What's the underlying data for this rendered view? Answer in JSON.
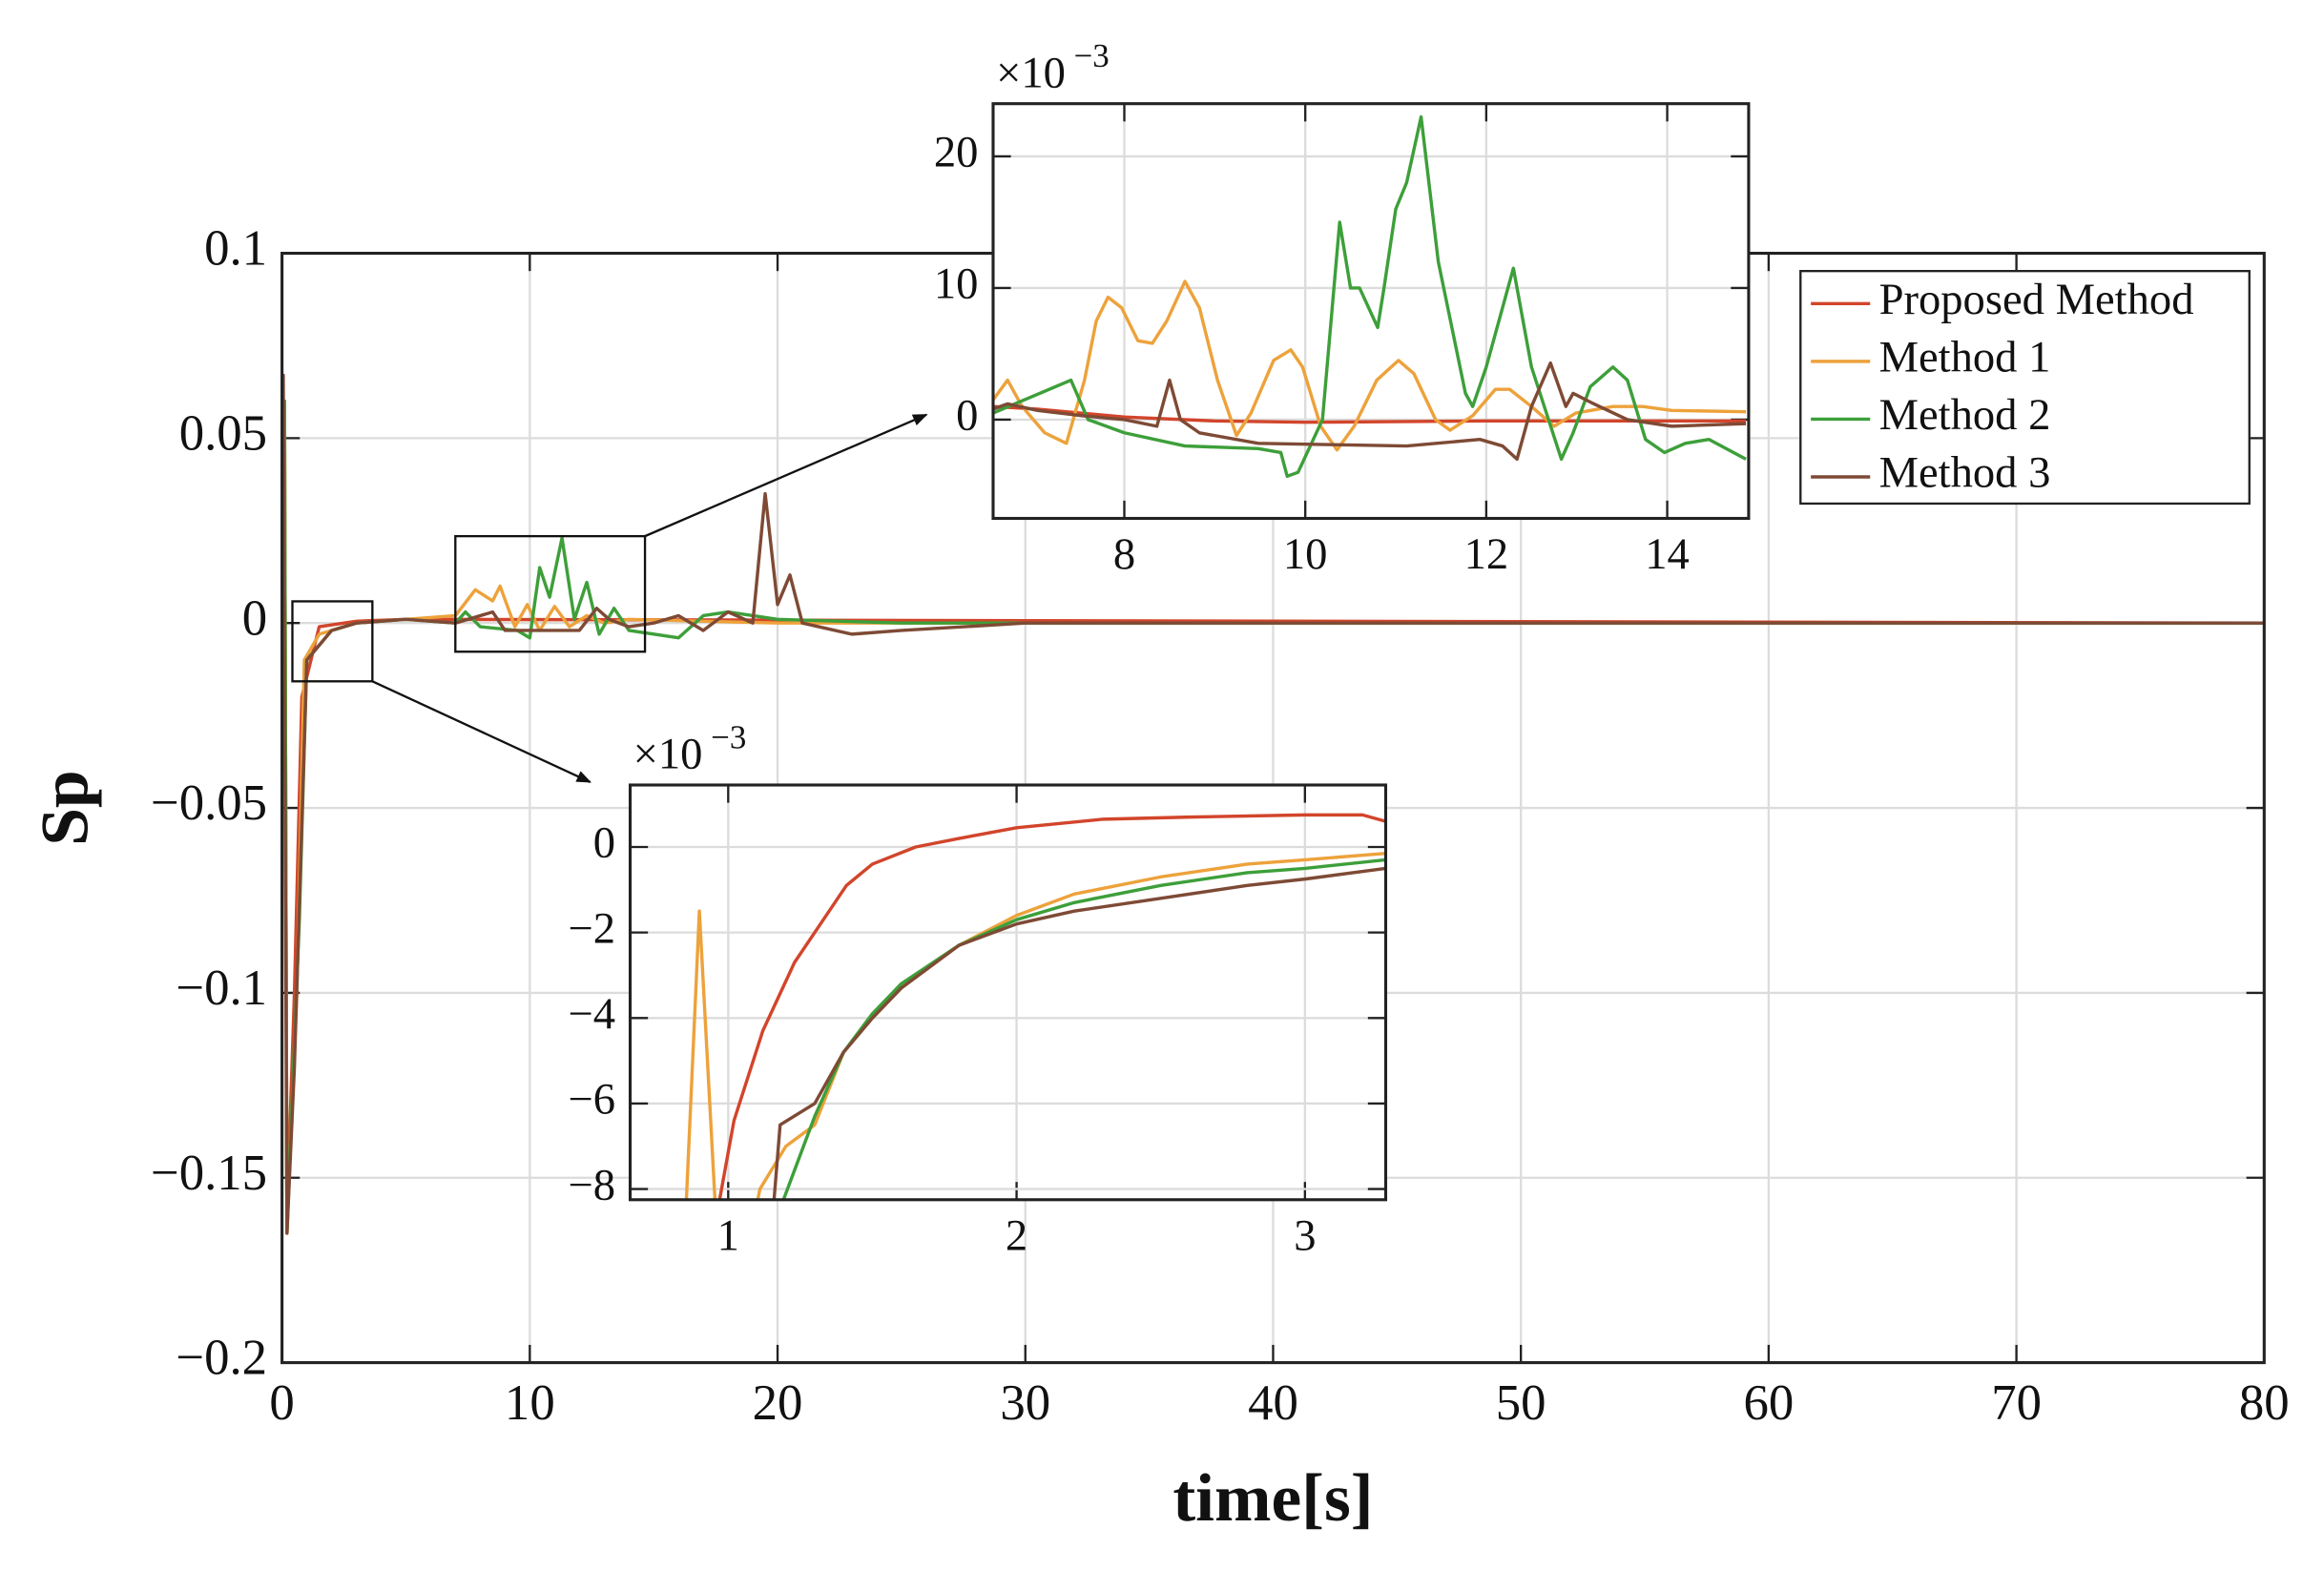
{
  "chart_data": [
    {
      "type": "line",
      "xlabel": "time[s]",
      "ylabel": "Sp",
      "xlim": [
        0,
        80
      ],
      "xticks": [
        0,
        10,
        20,
        30,
        40,
        50,
        60,
        70,
        80
      ],
      "ylim": [
        -0.2,
        0.1
      ],
      "yticks": [
        {
          "value": -0.2,
          "label": "−0.2"
        },
        {
          "value": -0.15,
          "label": "−0.15"
        },
        {
          "value": -0.1,
          "label": "−0.1"
        },
        {
          "value": -0.05,
          "label": "−0.05"
        },
        0,
        0.05,
        0.1
      ],
      "grid": true,
      "legend": "northeast",
      "series": [
        {
          "name": "Proposed Method",
          "color": "#d2452b",
          "x": [
            0,
            0.1,
            0.2,
            0.5,
            0.8,
            1.5,
            3,
            5,
            80
          ],
          "values": [
            0,
            0.06,
            -0.16,
            -0.1,
            -0.02,
            -0.001,
            0.0005,
            0.001,
            0
          ]
        },
        {
          "name": "Method 1",
          "color": "#eda23b",
          "x": [
            0,
            0.1,
            0.2,
            0.6,
            0.9,
            1.5,
            3,
            5,
            7,
            7.8,
            8.5,
            8.8,
            9.4,
            9.9,
            10.4,
            11,
            11.6,
            12.3,
            13,
            14,
            20,
            80
          ],
          "values": [
            0,
            0.06,
            -0.165,
            -0.1,
            -0.01,
            -0.003,
            0,
            0.001,
            0.002,
            0.009,
            0.006,
            0.01,
            -0.001,
            0.005,
            -0.002,
            0.0045,
            -0.001,
            0.002,
            0,
            0.001,
            0,
            0
          ]
        },
        {
          "name": "Method 2",
          "color": "#3d9f3a",
          "x": [
            0,
            0.1,
            0.2,
            0.7,
            1,
            2,
            3,
            5,
            7,
            7.4,
            8,
            9.5,
            10,
            10.4,
            10.8,
            11.3,
            11.8,
            12.3,
            12.8,
            13.4,
            14,
            15,
            16,
            17,
            18,
            20,
            25,
            80
          ],
          "values": [
            0,
            0.06,
            -0.165,
            -0.08,
            -0.01,
            -0.002,
            0,
            0.001,
            0,
            0.003,
            -0.001,
            -0.002,
            -0.004,
            0.015,
            0.007,
            0.023,
            0.001,
            0.011,
            -0.003,
            0.004,
            -0.002,
            -0.003,
            -0.004,
            0.002,
            0.003,
            0.001,
            0,
            0
          ]
        },
        {
          "name": "Method 3",
          "color": "#7e4a35",
          "x": [
            0,
            0.05,
            0.2,
            0.5,
            1,
            2,
            3,
            5,
            7,
            8.5,
            9,
            12,
            12.7,
            13.2,
            14,
            15,
            16,
            17,
            18,
            19,
            19.5,
            20,
            20.5,
            21,
            23,
            25,
            30,
            80
          ],
          "values": [
            0,
            0.067,
            -0.165,
            -0.12,
            -0.01,
            -0.002,
            0,
            0.001,
            0,
            0.003,
            -0.002,
            -0.002,
            0.004,
            0.001,
            -0.001,
            0,
            0.002,
            -0.002,
            0.003,
            0,
            0.035,
            0.005,
            0.013,
            0,
            -0.003,
            -0.002,
            0,
            0
          ]
        }
      ]
    },
    {
      "type": "line",
      "y_multiplier": "×10",
      "y_multiplier_exponent": "−3",
      "xlim": [
        6.55,
        14.9
      ],
      "xticks": [
        8,
        10,
        12,
        14
      ],
      "ylim": [
        -7.5,
        24
      ],
      "yticks": [
        0,
        10,
        20
      ],
      "grid": true,
      "series": [
        {
          "color": "#d2452b",
          "x": [
            6.55,
            7.04,
            8,
            9,
            10,
            12,
            14.87
          ],
          "values": [
            1,
            0.8,
            0.2,
            -0.1,
            -0.2,
            -0.1,
            -0.1
          ]
        },
        {
          "color": "#eda23b",
          "x": [
            6.55,
            6.71,
            6.87,
            7.12,
            7.36,
            7.56,
            7.69,
            7.82,
            7.97,
            8.15,
            8.31,
            8.47,
            8.67,
            8.83,
            9.03,
            9.24,
            9.4,
            9.65,
            9.84,
            9.97,
            10.17,
            10.35,
            10.54,
            10.79,
            11.03,
            11.2,
            11.44,
            11.6,
            11.85,
            12.1,
            12.26,
            12.5,
            12.75,
            12.99,
            13.4,
            13.73,
            14.05,
            14.87
          ],
          "values": [
            1.5,
            3,
            1,
            -1,
            -1.8,
            3,
            7.5,
            9.3,
            8.5,
            6,
            5.8,
            7.5,
            10.5,
            8.5,
            3,
            -1.2,
            0.5,
            4.5,
            5.3,
            4,
            -0.5,
            -2.3,
            -0.5,
            3,
            4.5,
            3.5,
            0,
            -0.8,
            0.3,
            2.3,
            2.3,
            1,
            -0.5,
            0.5,
            1,
            1,
            0.7,
            0.6
          ]
        },
        {
          "color": "#3d9f3a",
          "x": [
            6.55,
            7.41,
            7.6,
            8,
            8.67,
            9.48,
            9.73,
            9.8,
            9.92,
            10.19,
            10.38,
            10.5,
            10.6,
            10.8,
            10.87,
            11,
            11.12,
            11.28,
            11.47,
            11.77,
            11.85,
            12,
            12.3,
            12.5,
            12.83,
            12.96,
            13.15,
            13.4,
            13.56,
            13.76,
            13.97,
            14.2,
            14.46,
            14.87
          ],
          "values": [
            0.5,
            3,
            0,
            -1,
            -2,
            -2.2,
            -2.5,
            -4.3,
            -4,
            0,
            15,
            10,
            10,
            7,
            10,
            16,
            18,
            23,
            12,
            2,
            1,
            4,
            11.5,
            4,
            -3,
            -1,
            2.5,
            4,
            3,
            -1.5,
            -2.5,
            -1.8,
            -1.5,
            -3
          ]
        },
        {
          "color": "#7e4a35",
          "x": [
            6.55,
            6.71,
            7.04,
            7.53,
            8,
            8.36,
            8.5,
            8.62,
            8.83,
            9.48,
            10.3,
            11.12,
            11.93,
            12.18,
            12.34,
            12.5,
            12.71,
            12.88,
            12.96,
            13.16,
            13.56,
            14.05,
            14.87
          ],
          "values": [
            0.8,
            1.2,
            0.7,
            0.3,
            0,
            -0.5,
            3,
            0,
            -1,
            -1.8,
            -1.9,
            -2,
            -1.5,
            -2,
            -3,
            1,
            4.3,
            1,
            2,
            1.3,
            0,
            -0.5,
            -0.3
          ]
        }
      ]
    },
    {
      "type": "line",
      "y_multiplier": "×10",
      "y_multiplier_exponent": "−3",
      "xlim": [
        0.66,
        3.28
      ],
      "xticks": [
        1,
        2,
        3
      ],
      "ylim": [
        -8.25,
        1.45
      ],
      "yticks": [
        {
          "value": -8,
          "label": "−8"
        },
        {
          "value": -6,
          "label": "−6"
        },
        {
          "value": -4,
          "label": "−4"
        },
        {
          "value": -2,
          "label": "−2"
        },
        0
      ],
      "grid": true,
      "series": [
        {
          "color": "#d2452b",
          "x": [
            0.95,
            1.02,
            1.12,
            1.23,
            1.33,
            1.41,
            1.5,
            1.65,
            1.8,
            2,
            2.3,
            2.6,
            3,
            3.2,
            3.28
          ],
          "values": [
            -9,
            -6.4,
            -4.3,
            -2.7,
            -1.7,
            -0.9,
            -0.4,
            0,
            0.2,
            0.45,
            0.65,
            0.7,
            0.75,
            0.75,
            0.6
          ]
        },
        {
          "color": "#eda23b",
          "x": [
            0.85,
            0.9,
            0.96,
            1.08,
            1.11,
            1.2,
            1.3,
            1.4,
            1.5,
            1.6,
            1.8,
            2,
            2.2,
            2.5,
            2.8,
            3,
            3.28
          ],
          "values": [
            -9,
            -1.5,
            -9,
            -9,
            -8,
            -7,
            -6.5,
            -4.8,
            -4,
            -3.3,
            -2.3,
            -1.6,
            -1.1,
            -0.7,
            -0.4,
            -0.3,
            -0.15
          ]
        },
        {
          "color": "#3d9f3a",
          "x": [
            1.15,
            1.3,
            1.4,
            1.5,
            1.6,
            1.8,
            2,
            2.2,
            2.5,
            2.8,
            3,
            3.28
          ],
          "values": [
            -9,
            -6.3,
            -4.8,
            -3.9,
            -3.2,
            -2.3,
            -1.7,
            -1.3,
            -0.9,
            -0.6,
            -0.5,
            -0.3
          ]
        },
        {
          "color": "#7e4a35",
          "x": [
            1.15,
            1.18,
            1.3,
            1.4,
            1.5,
            1.6,
            1.8,
            2,
            2.2,
            2.5,
            2.8,
            3,
            3.28
          ],
          "values": [
            -9,
            -6.5,
            -6,
            -4.8,
            -4,
            -3.3,
            -2.3,
            -1.8,
            -1.5,
            -1.2,
            -0.9,
            -0.75,
            -0.5
          ]
        }
      ]
    }
  ]
}
